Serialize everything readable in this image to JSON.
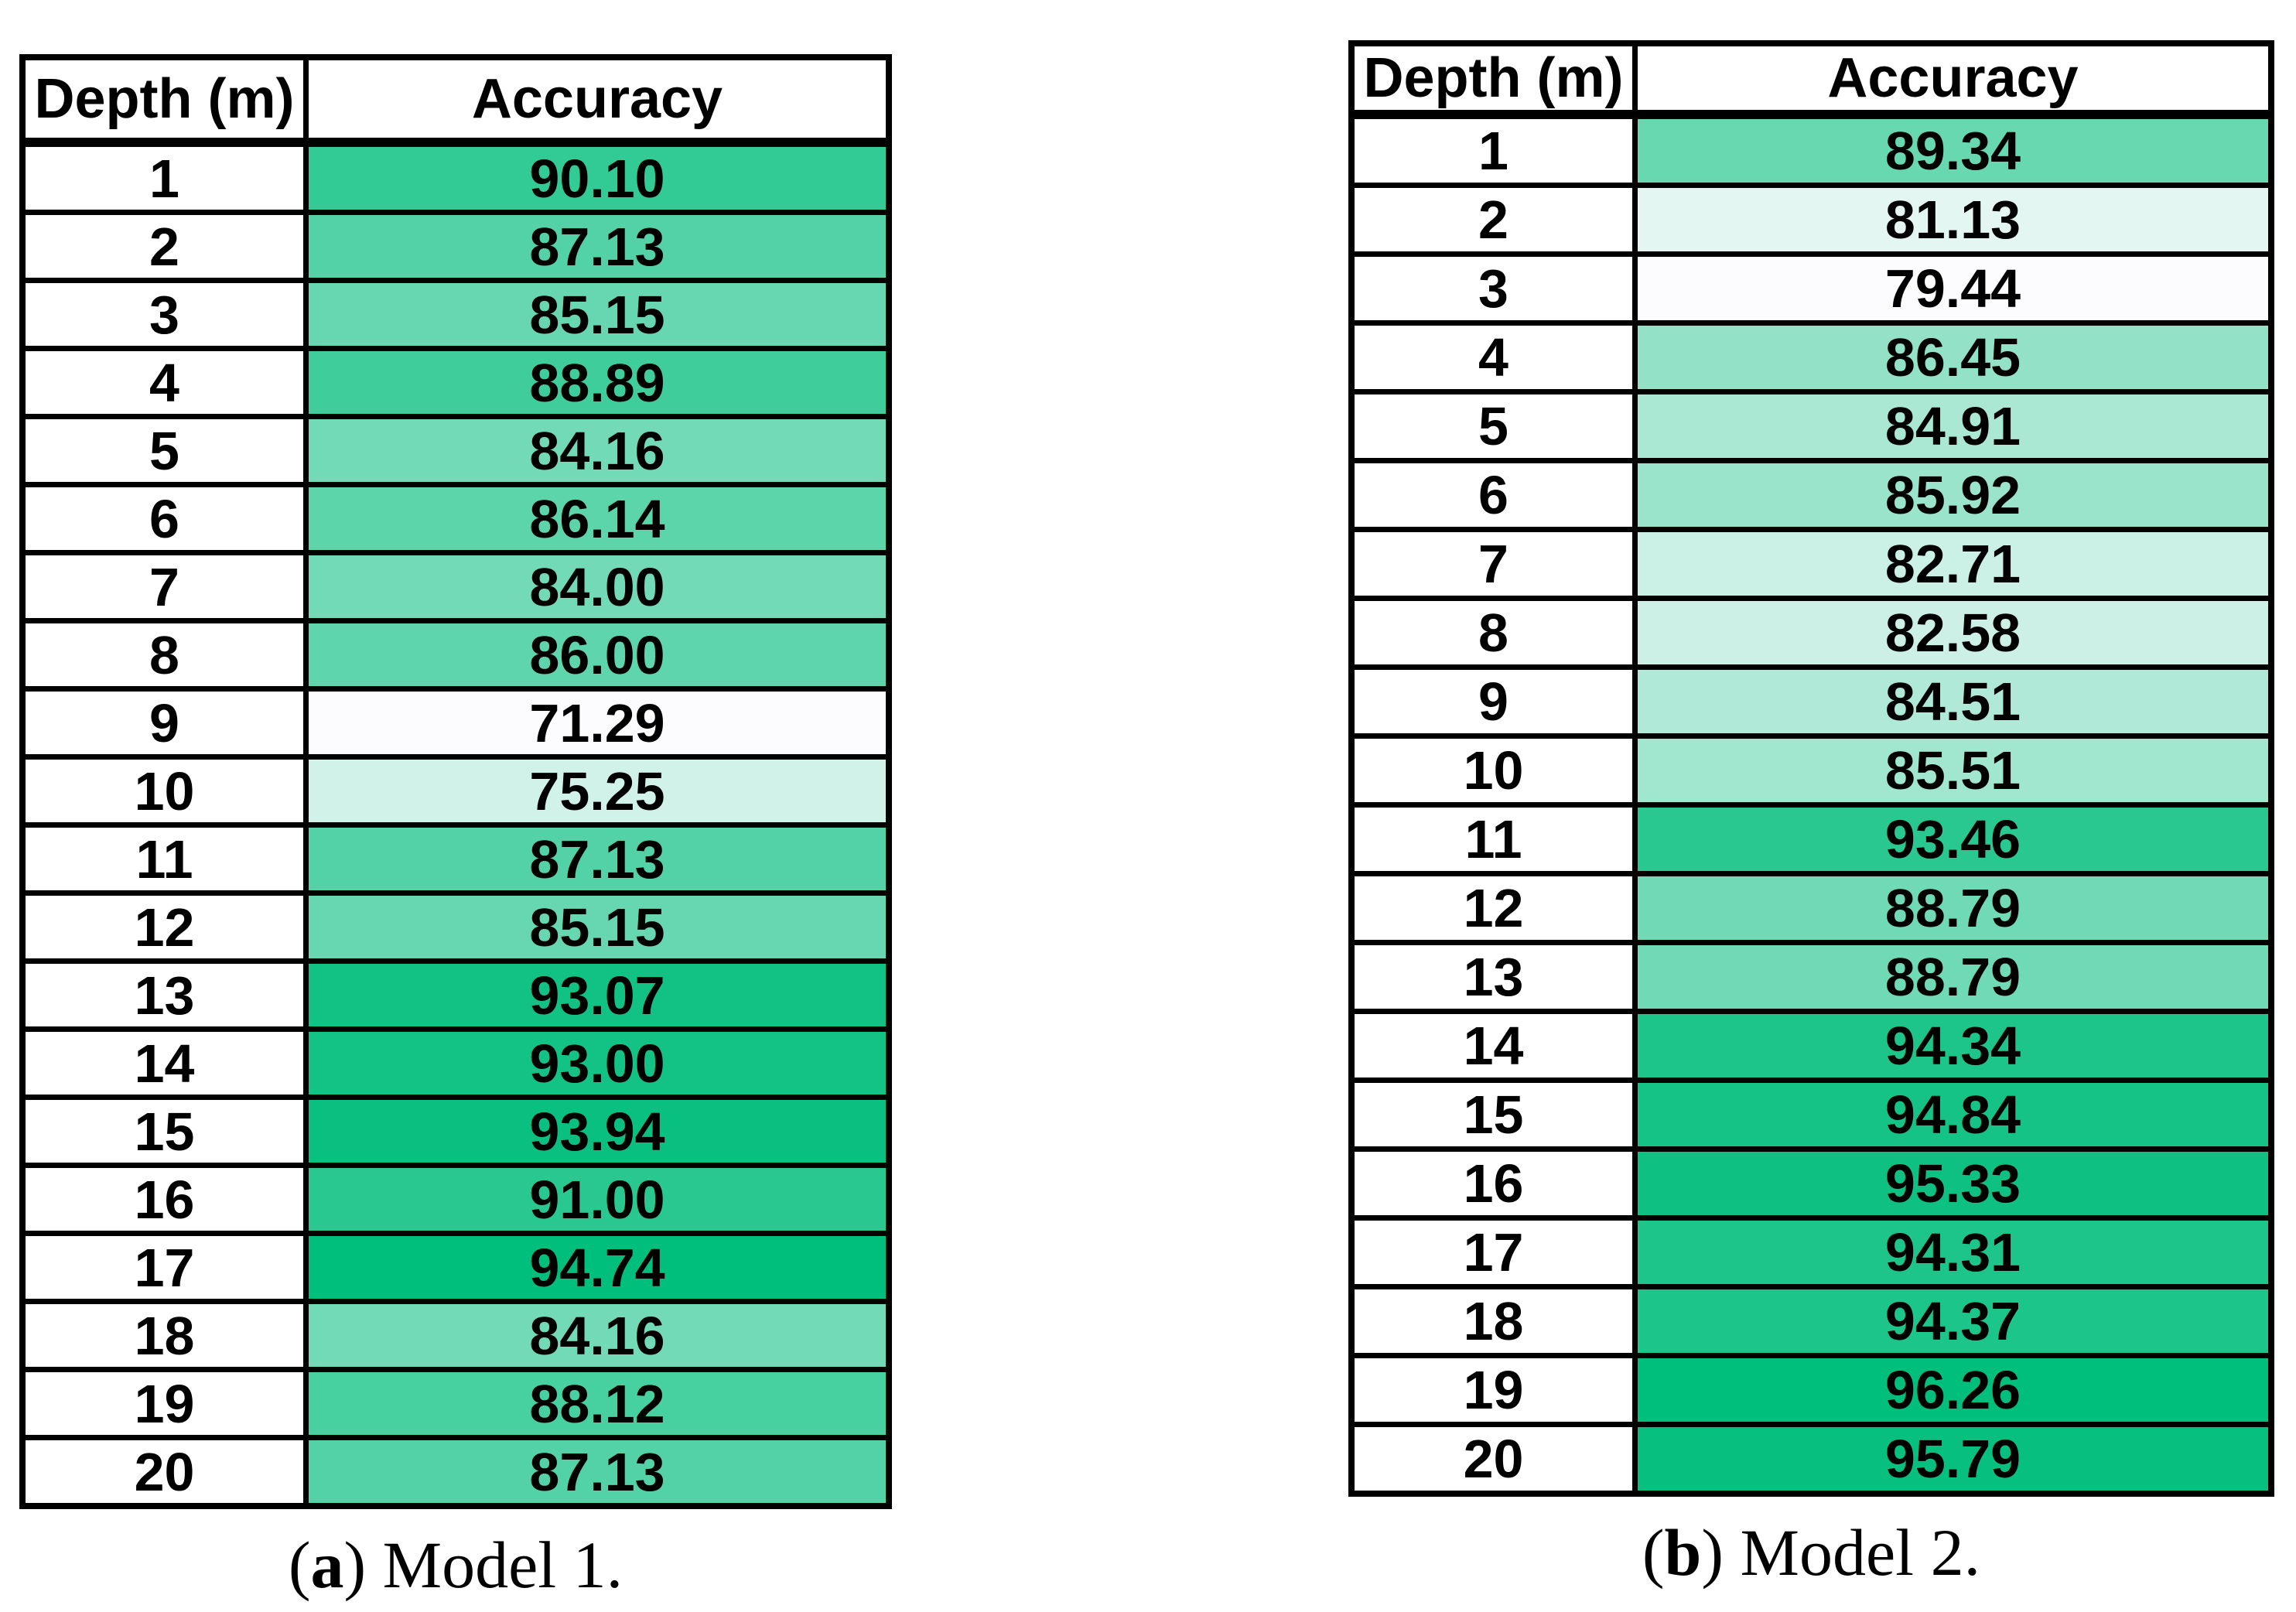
{
  "heatmap_scale": {
    "min_color": "#FCFCFF",
    "max_color": "#00BE7B",
    "border_color": "#000000",
    "text_color": "#000000"
  },
  "chart_data": [
    {
      "type": "heatmap",
      "title": "Model 1.",
      "columns": [
        "Depth (m)",
        "Accuracy"
      ],
      "caption": {
        "prefix": "(",
        "letter": "a",
        "suffix": ") ",
        "title": "Model 1."
      },
      "xlabel": "Depth (m)",
      "ylabel": "Accuracy",
      "depths": [
        1,
        2,
        3,
        4,
        5,
        6,
        7,
        8,
        9,
        10,
        11,
        12,
        13,
        14,
        15,
        16,
        17,
        18,
        19,
        20
      ],
      "values": [
        90.1,
        87.13,
        85.15,
        88.89,
        84.16,
        86.14,
        84.0,
        86.0,
        71.29,
        75.25,
        87.13,
        85.15,
        93.07,
        93.0,
        93.94,
        91.0,
        94.74,
        84.16,
        88.12,
        87.13
      ]
    },
    {
      "type": "heatmap",
      "title": "Model 2.",
      "columns": [
        "Depth (m)",
        "Accuracy"
      ],
      "caption": {
        "prefix": "(",
        "letter": "b",
        "suffix": ") ",
        "title": "Model 2."
      },
      "xlabel": "Depth (m)",
      "ylabel": "Accuracy",
      "depths": [
        1,
        2,
        3,
        4,
        5,
        6,
        7,
        8,
        9,
        10,
        11,
        12,
        13,
        14,
        15,
        16,
        17,
        18,
        19,
        20
      ],
      "values": [
        89.34,
        81.13,
        79.44,
        86.45,
        84.91,
        85.92,
        82.71,
        82.58,
        84.51,
        85.51,
        93.46,
        88.79,
        88.79,
        94.34,
        94.84,
        95.33,
        94.31,
        94.37,
        96.26,
        95.79
      ]
    }
  ]
}
